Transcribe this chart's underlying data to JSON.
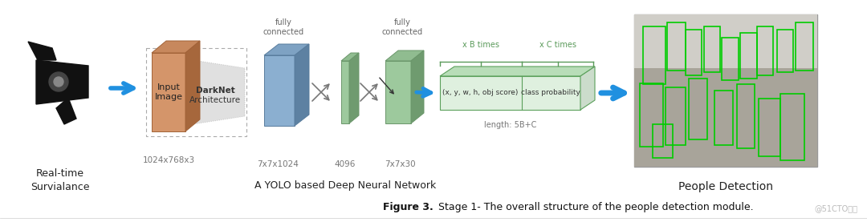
{
  "figure_width": 10.8,
  "figure_height": 2.77,
  "dpi": 100,
  "bg_color": "#ffffff",
  "caption_bold": "Figure 3.",
  "caption_normal": " Stage 1- The overall structure of the people detection module.",
  "watermark": "@51CTO博客",
  "label_real_time": "Real-time\nSurvialance",
  "label_input_size": "1024x768x3",
  "label_input_image": "Input\nImage",
  "label_darknet_bold": "DarkNet",
  "label_darknet_normal": "Architecture",
  "label_7x7x1024": "7x7x1024",
  "label_4096": "4096",
  "label_7x7x30": "7x7x30",
  "label_fully_connected1": "fully\nconnected",
  "label_fully_connected2": "fully\nconnected",
  "label_x_b_times": "x B times",
  "label_x_c_times": "x C times",
  "label_xywhobj": "(x, y, w, h, obj score)",
  "label_class_prob": "class probability",
  "label_length": "length: 5B+C",
  "label_yolo_network": "A YOLO based Deep Neural Network",
  "label_people_detection": "People Detection",
  "color_orange_face": "#D4956A",
  "color_orange_top": "#C8823A",
  "color_orange_side": "#B87030",
  "color_blue_face": "#8BAFD0",
  "color_blue_top": "#7095B8",
  "color_blue_side": "#607EA8",
  "color_green_face": "#9DC99D",
  "color_green_top": "#80AA80",
  "color_green_side": "#6A956A",
  "color_green_box_fill": "#dff0df",
  "color_green_box_top": "#b8ddb8",
  "color_green_box_border": "#5BA05B",
  "color_arrow_blue": "#2090E0",
  "color_text_label": "#777777",
  "color_text_dark": "#222222",
  "color_text_green": "#5a9a5a",
  "color_caption": "#111111",
  "color_cross": "#666666",
  "color_brace": "#5a9a5a"
}
